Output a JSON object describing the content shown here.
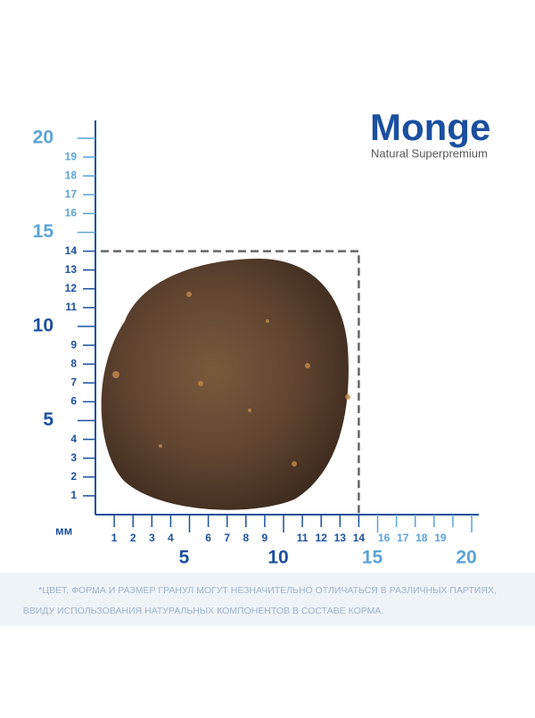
{
  "brand": {
    "name": "Monge",
    "tagline": "Natural Superpremium"
  },
  "ruler": {
    "unit": "мм",
    "dark": {
      "color": "#1b4f9f",
      "minor": [
        1,
        2,
        3,
        4,
        6,
        7,
        8,
        9,
        11,
        12,
        13,
        14
      ],
      "major": [
        5,
        10
      ]
    },
    "light": {
      "color": "#5aa4d8",
      "minor": [
        16,
        17,
        18,
        19
      ],
      "major": [
        15,
        20
      ]
    }
  },
  "disclaimer": [
    "*ЦВЕТ, ФОРМА И РАЗМЕР ГРАНУЛ МОГУТ НЕЗНАЧИТЕЛЬНО ОТЛИЧАТЬСЯ В РАЗЛИЧНЫХ ПАРТИЯХ,",
    "ВВИДУ ИСПОЛЬЗОВАНИЯ НАТУРАЛЬНЫХ КОМПОНЕНТОВ В СОСТАВЕ КОРМА."
  ]
}
